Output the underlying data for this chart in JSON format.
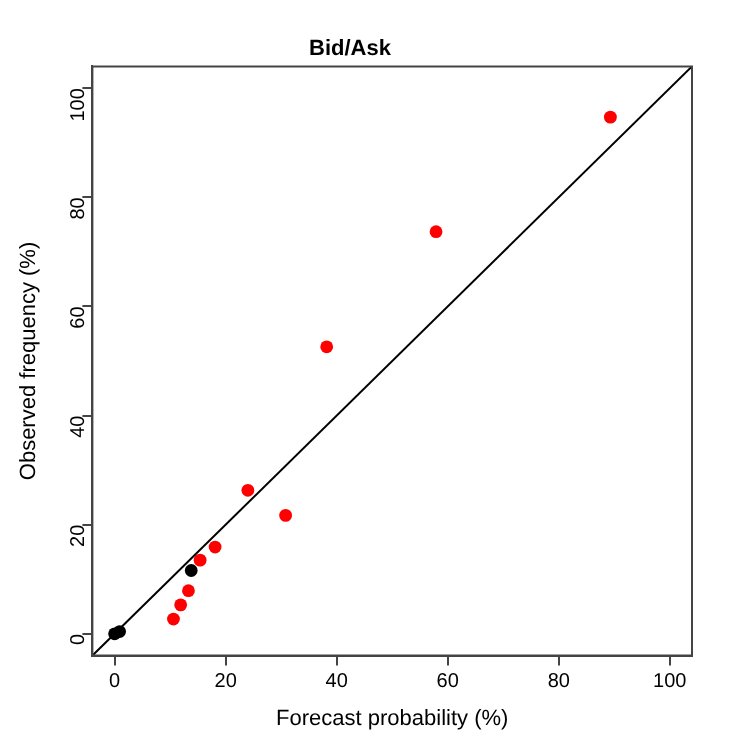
{
  "chart_data": {
    "type": "scatter",
    "title": "Bid/Ask",
    "xlabel": "Forecast probability (%)",
    "ylabel": "Observed frequency (%)",
    "xlim": [
      -4,
      104
    ],
    "ylim": [
      -4,
      104
    ],
    "xticks": [
      0,
      20,
      40,
      60,
      80,
      100
    ],
    "yticks": [
      0,
      20,
      40,
      60,
      80,
      100
    ],
    "grid": false,
    "legend": false,
    "marker": "circle",
    "series": [
      {
        "type": "line",
        "color": "#000000",
        "x": [
          -4,
          104
        ],
        "values": [
          -4,
          104
        ],
        "line_style": "solid",
        "marker": "none"
      },
      {
        "color": "#ff0000",
        "x": [
          89.3,
          57.9,
          38.2,
          24.0,
          30.8,
          18.1,
          15.4,
          13.3,
          11.9,
          10.6
        ],
        "values": [
          94.7,
          73.7,
          52.6,
          26.3,
          21.7,
          15.9,
          13.5,
          7.9,
          5.3,
          2.7
        ]
      },
      {
        "color": "#000000",
        "x": [
          13.8,
          0,
          0.5,
          0.9
        ],
        "values": [
          11.6,
          0,
          null,
          0.4
        ]
      }
    ]
  }
}
